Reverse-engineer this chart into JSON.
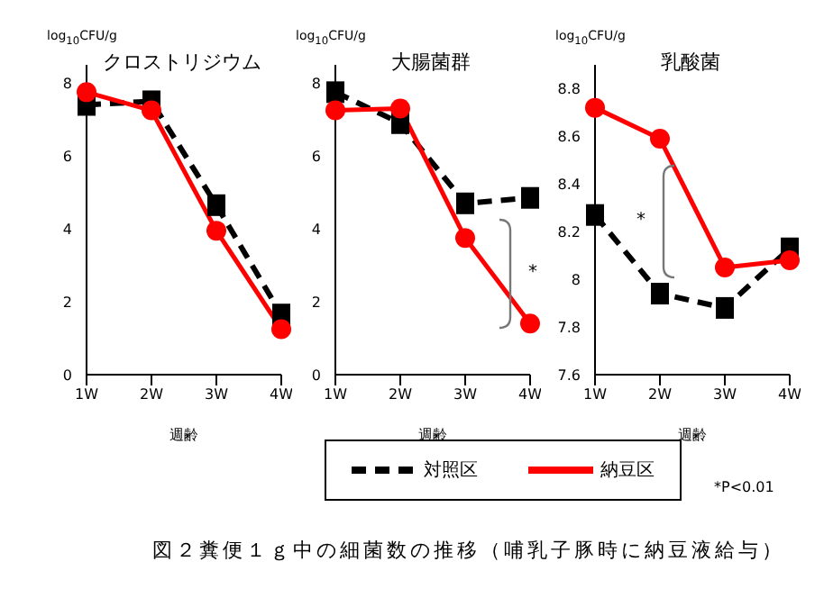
{
  "chart_data": [
    {
      "type": "line",
      "title": "クロストリジウム",
      "xlabel": "週齢",
      "ylabel": "log$_{10}$CFU/g",
      "categories": [
        "1W",
        "2W",
        "3W",
        "4W"
      ],
      "ylim": [
        0,
        8.5
      ],
      "yticks": [
        0,
        2,
        4,
        6,
        8
      ],
      "grid": false,
      "legend": false,
      "series": [
        {
          "color": "#000000",
          "line_style": "dashed",
          "marker": "square",
          "values": [
            7.4,
            7.5,
            4.65,
            1.65
          ]
        },
        {
          "color": "#ff0000",
          "line_style": "solid",
          "marker": "circle",
          "values": [
            7.75,
            7.25,
            3.95,
            1.25
          ]
        }
      ]
    },
    {
      "type": "line",
      "title": "大腸菌群",
      "xlabel": "週齢",
      "ylabel": "log$_{10}$CFU/g",
      "categories": [
        "1W",
        "2W",
        "3W",
        "4W"
      ],
      "ylim": [
        0,
        8.5
      ],
      "yticks": [
        0,
        2,
        4,
        6,
        8
      ],
      "grid": false,
      "legend": "bottom",
      "annotations": [
        "*",
        "*P<0.01",
        "図２糞便１ｇ中の細菌数の推移（哺乳子豚時に納豆液給与）"
      ],
      "series": [
        {
          "name": "対照区",
          "color": "#000000",
          "line_style": "dashed",
          "marker": "square",
          "values": [
            7.75,
            6.9,
            4.7,
            4.85
          ]
        },
        {
          "name": "納豆区",
          "color": "#ff0000",
          "line_style": "solid",
          "marker": "circle",
          "values": [
            7.25,
            7.3,
            3.75,
            1.4
          ]
        }
      ]
    },
    {
      "type": "line",
      "title": "乳酸菌",
      "xlabel": "週齢",
      "ylabel": "log$_{10}$CFU/g",
      "categories": [
        "1W",
        "2W",
        "3W",
        "4W"
      ],
      "ylim": [
        7.6,
        8.9
      ],
      "yticks": [
        7.6,
        7.8,
        8,
        8.2,
        8.4,
        8.6,
        8.8
      ],
      "grid": false,
      "legend": false,
      "annotations": [
        "*"
      ],
      "series": [
        {
          "color": "#000000",
          "line_style": "dashed",
          "marker": "square",
          "values": [
            8.27,
            7.94,
            7.88,
            8.13
          ]
        },
        {
          "color": "#ff0000",
          "line_style": "solid",
          "marker": "circle",
          "values": [
            8.72,
            8.59,
            8.05,
            8.08
          ]
        }
      ]
    }
  ]
}
